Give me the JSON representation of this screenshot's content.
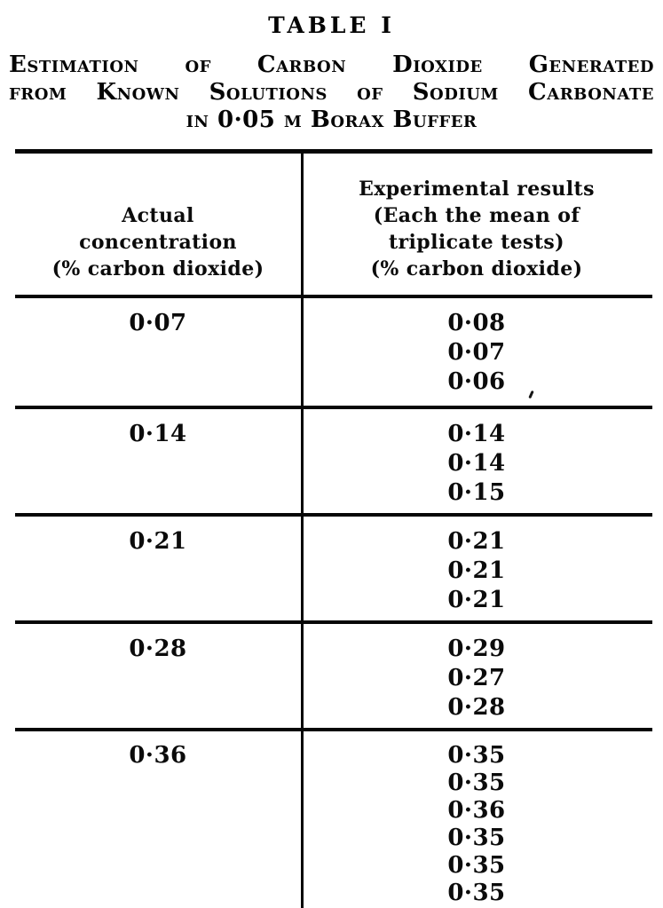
{
  "colors": {
    "ink": "#060606",
    "paper": "#ffffff"
  },
  "title": "TABLE I",
  "subtitle": {
    "line1": "Estimation of Carbon Dioxide Generated",
    "line2": "from Known Solutions of Sodium Carbonate",
    "line3": "in 0·05 m Borax Buffer"
  },
  "table": {
    "columns": [
      {
        "header_lines": [
          "Actual",
          "concentration",
          "(% carbon dioxide)"
        ]
      },
      {
        "header_lines": [
          "Experimental results",
          "(Each the mean of",
          "triplicate tests)",
          "(% carbon dioxide)"
        ]
      }
    ],
    "rows": [
      {
        "actual": "0·07",
        "results": [
          "0·08",
          "0·07",
          "0·06"
        ]
      },
      {
        "actual": "0·14",
        "results": [
          "0·14",
          "0·14",
          "0·15"
        ]
      },
      {
        "actual": "0·21",
        "results": [
          "0·21",
          "0·21",
          "0·21"
        ]
      },
      {
        "actual": "0·28",
        "results": [
          "0·29",
          "0·27",
          "0·28"
        ]
      },
      {
        "actual": "0·36",
        "results": [
          "0·35",
          "0·35",
          "0·36",
          "0·35",
          "0·35",
          "0·35"
        ]
      }
    ]
  }
}
